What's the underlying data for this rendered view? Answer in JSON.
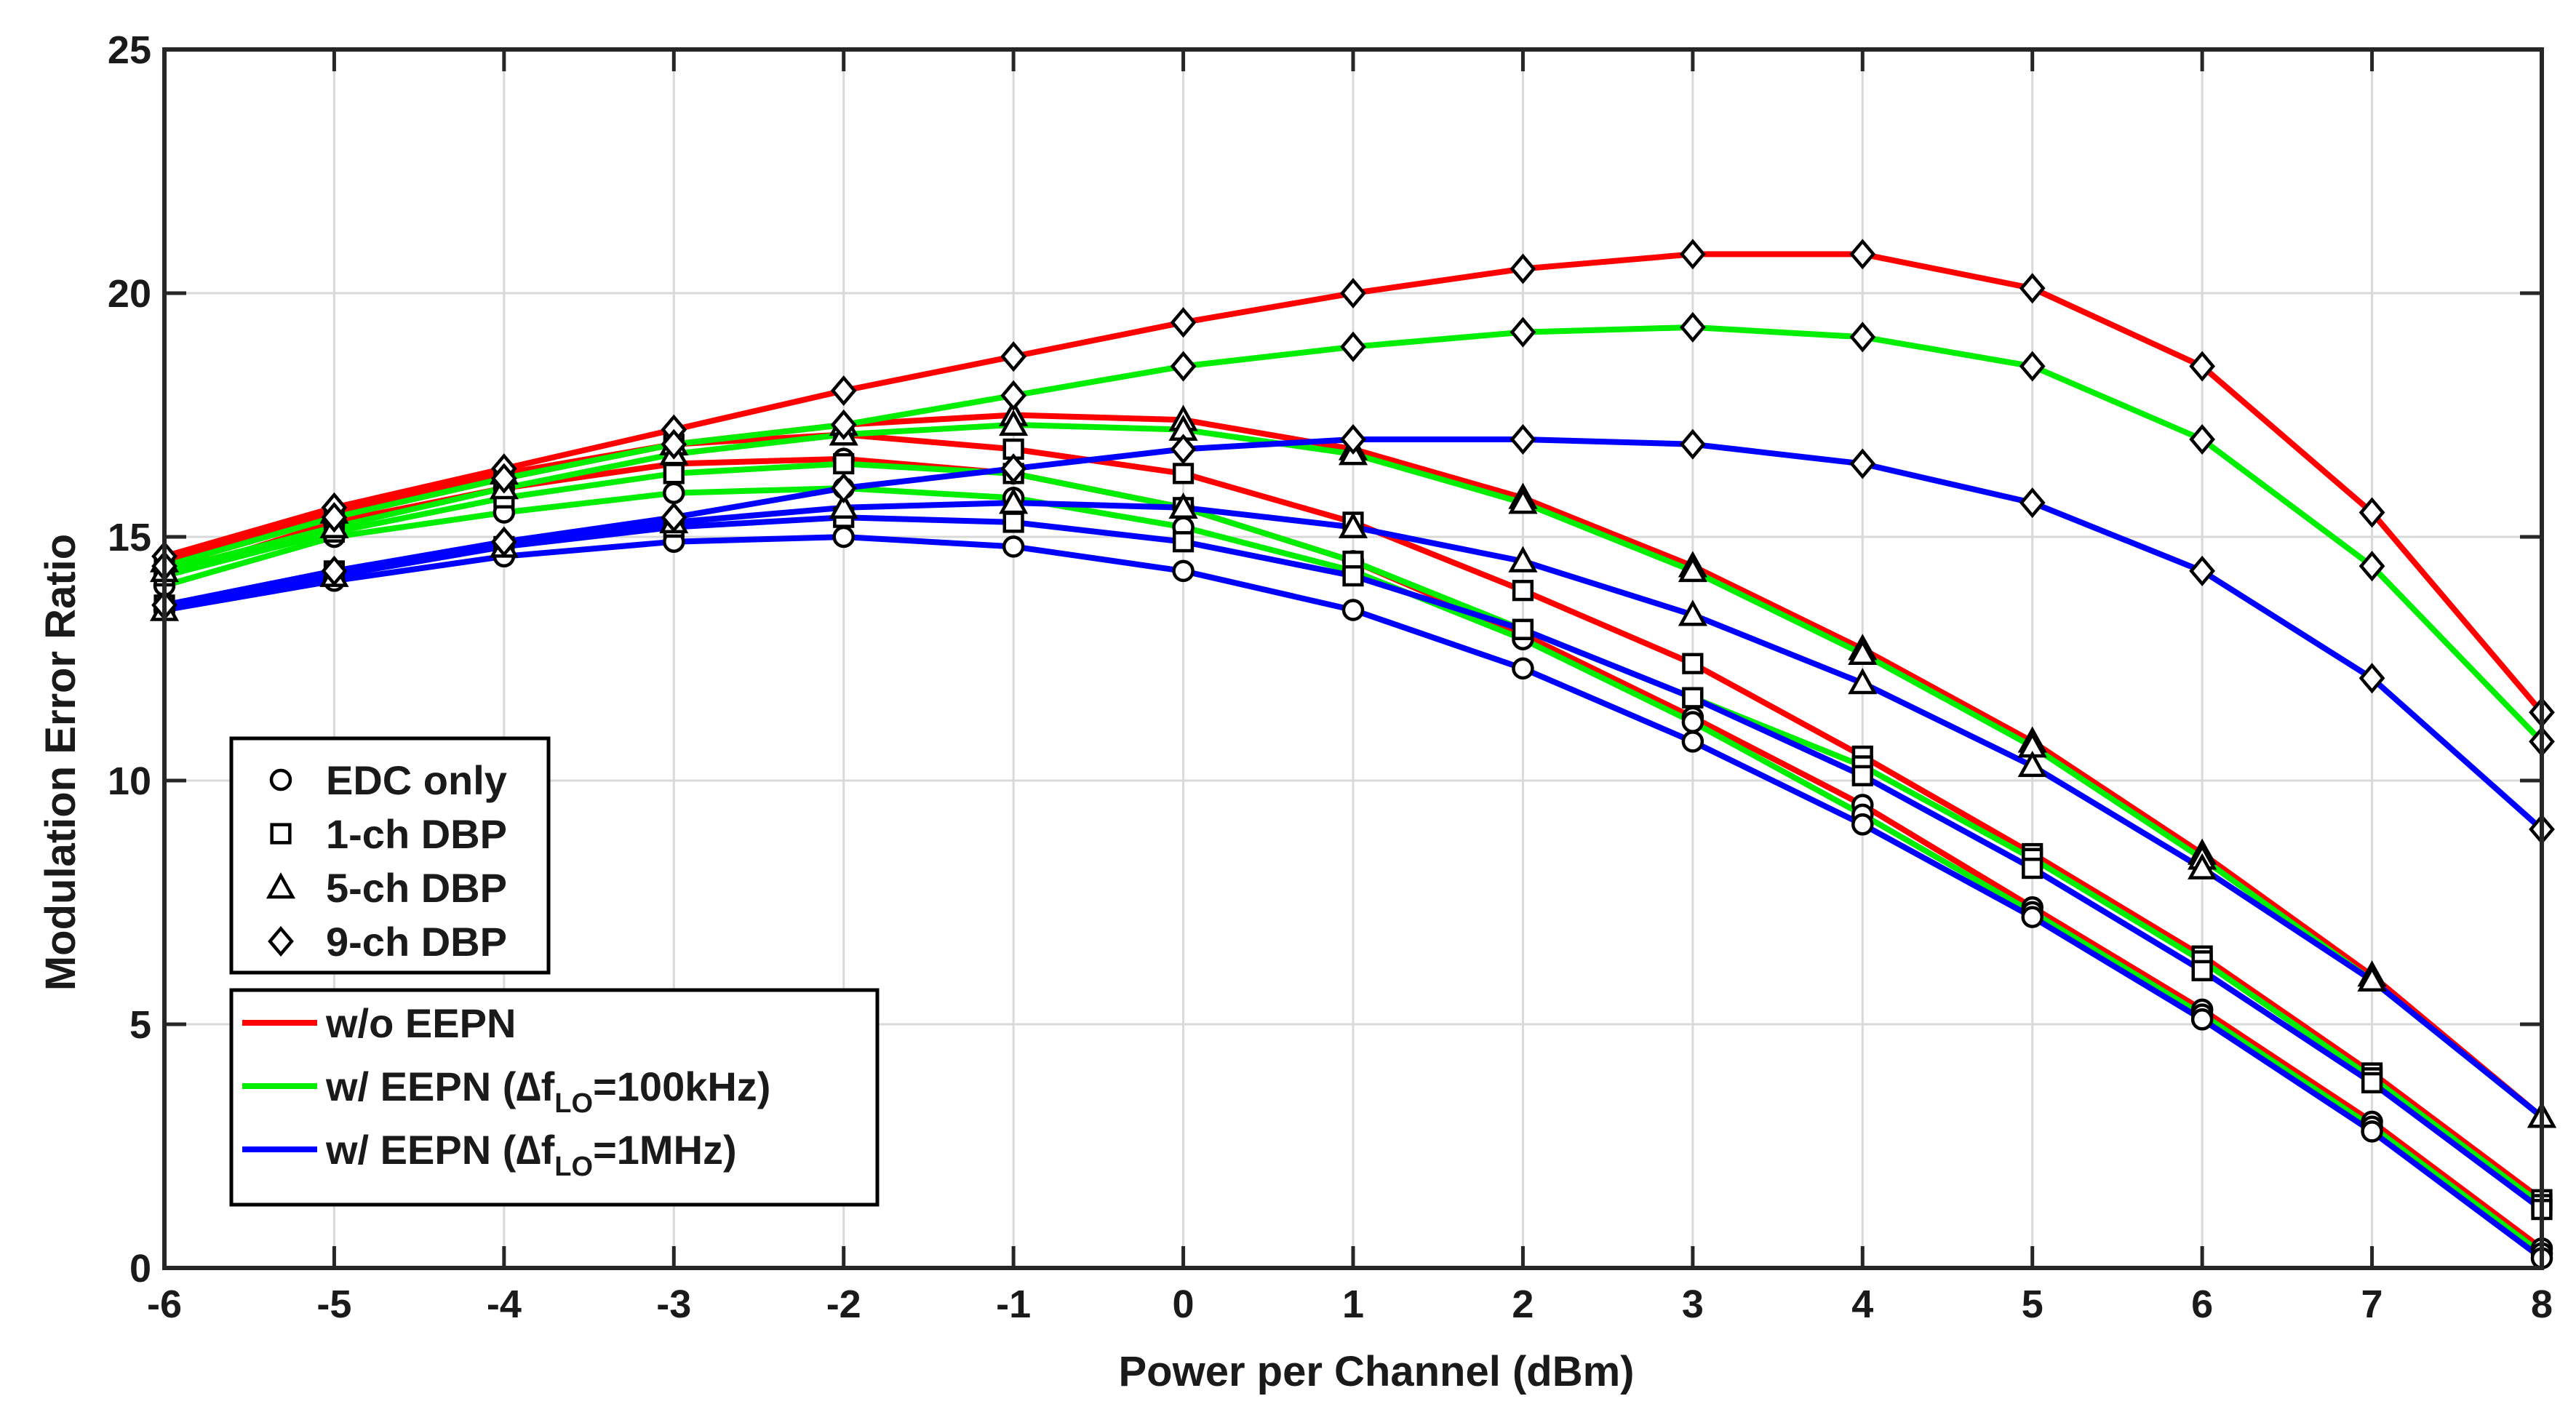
{
  "chart_data": {
    "type": "line",
    "title": "",
    "xlabel": "Power per Channel (dBm)",
    "ylabel": "Modulation Error Ratio",
    "x": [
      -6,
      -5,
      -4,
      -3,
      -2,
      -1,
      0,
      1,
      2,
      3,
      4,
      5,
      6,
      7,
      8
    ],
    "xlim": [
      -6,
      8
    ],
    "ylim": [
      0,
      25
    ],
    "xticks": [
      "-6",
      "-5",
      "-4",
      "-3",
      "-2",
      "-1",
      "0",
      "1",
      "2",
      "3",
      "4",
      "5",
      "6",
      "7",
      "8"
    ],
    "yticks": [
      "0",
      "5",
      "10",
      "15",
      "20",
      "25"
    ],
    "grid": true,
    "colors": {
      "wo_eepn": "#ff0000",
      "w_eepn_100k": "#00ee00",
      "w_eepn_1m": "#0000ff"
    },
    "series": [
      {
        "name": "EDC only, w/o EEPN",
        "marker": "circle",
        "color_key": "wo_eepn",
        "values": [
          14.2,
          15.3,
          16.0,
          16.5,
          16.6,
          16.3,
          15.6,
          14.5,
          13.0,
          11.3,
          9.5,
          7.4,
          5.3,
          3.0,
          0.4
        ]
      },
      {
        "name": "EDC only, w/ EEPN (100kHz)",
        "marker": "circle",
        "color_key": "w_eepn_100k",
        "values": [
          14.0,
          15.0,
          15.5,
          15.9,
          16.0,
          15.8,
          15.2,
          14.3,
          12.9,
          11.2,
          9.3,
          7.3,
          5.2,
          2.9,
          0.3
        ]
      },
      {
        "name": "EDC only, w/ EEPN (1MHz)",
        "marker": "circle",
        "color_key": "w_eepn_1m",
        "values": [
          13.5,
          14.1,
          14.6,
          14.9,
          15.0,
          14.8,
          14.3,
          13.5,
          12.3,
          10.8,
          9.1,
          7.2,
          5.1,
          2.8,
          0.2
        ]
      },
      {
        "name": "1-ch DBP, w/o EEPN",
        "marker": "square",
        "color_key": "wo_eepn",
        "values": [
          14.4,
          15.4,
          16.2,
          16.9,
          17.1,
          16.8,
          16.3,
          15.3,
          13.9,
          12.4,
          10.5,
          8.5,
          6.4,
          4.0,
          1.4
        ]
      },
      {
        "name": "1-ch DBP, w/ EEPN (100kHz)",
        "marker": "square",
        "color_key": "w_eepn_100k",
        "values": [
          14.2,
          15.1,
          15.8,
          16.3,
          16.5,
          16.3,
          15.6,
          14.5,
          13.1,
          11.7,
          10.3,
          8.4,
          6.3,
          3.9,
          1.3
        ]
      },
      {
        "name": "1-ch DBP, w/ EEPN (1MHz)",
        "marker": "square",
        "color_key": "w_eepn_1m",
        "values": [
          13.6,
          14.3,
          14.8,
          15.2,
          15.4,
          15.3,
          14.9,
          14.2,
          13.1,
          11.7,
          10.1,
          8.2,
          6.1,
          3.8,
          1.2
        ]
      },
      {
        "name": "5-ch DBP, w/o EEPN",
        "marker": "triangle",
        "color_key": "wo_eepn",
        "values": [
          14.5,
          15.5,
          16.3,
          16.9,
          17.3,
          17.5,
          17.4,
          16.8,
          15.8,
          14.4,
          12.7,
          10.8,
          8.5,
          6.0,
          3.1
        ]
      },
      {
        "name": "5-ch DBP, w/ EEPN (100kHz)",
        "marker": "triangle",
        "color_key": "w_eepn_100k",
        "values": [
          14.3,
          15.2,
          16.0,
          16.7,
          17.1,
          17.3,
          17.2,
          16.7,
          15.7,
          14.3,
          12.6,
          10.7,
          8.4,
          5.9,
          3.1
        ]
      },
      {
        "name": "5-ch DBP, w/ EEPN (1MHz)",
        "marker": "triangle",
        "color_key": "w_eepn_1m",
        "values": [
          13.5,
          14.2,
          14.8,
          15.3,
          15.6,
          15.7,
          15.6,
          15.2,
          14.5,
          13.4,
          12.0,
          10.3,
          8.2,
          5.9,
          3.1
        ]
      },
      {
        "name": "9-ch DBP, w/o EEPN",
        "marker": "diamond",
        "color_key": "wo_eepn",
        "values": [
          14.6,
          15.6,
          16.4,
          17.2,
          18.0,
          18.7,
          19.4,
          20.0,
          20.5,
          20.8,
          20.8,
          20.1,
          18.5,
          15.5,
          11.4
        ]
      },
      {
        "name": "9-ch DBP, w/ EEPN (100kHz)",
        "marker": "diamond",
        "color_key": "w_eepn_100k",
        "values": [
          14.4,
          15.4,
          16.2,
          16.9,
          17.3,
          17.9,
          18.5,
          18.9,
          19.2,
          19.3,
          19.1,
          18.5,
          17.0,
          14.4,
          10.8
        ]
      },
      {
        "name": "9-ch DBP, w/ EEPN (1MHz)",
        "marker": "diamond",
        "color_key": "w_eepn_1m",
        "values": [
          13.6,
          14.3,
          14.9,
          15.4,
          16.0,
          16.4,
          16.8,
          17.0,
          17.0,
          16.9,
          16.5,
          15.7,
          14.3,
          12.1,
          9.0
        ]
      }
    ],
    "legend_markers": {
      "placement": "bottom-left",
      "items": [
        {
          "marker": "circle",
          "label": "EDC only"
        },
        {
          "marker": "square",
          "label": "1-ch DBP"
        },
        {
          "marker": "triangle",
          "label": "5-ch DBP"
        },
        {
          "marker": "diamond",
          "label": "9-ch DBP"
        }
      ]
    },
    "legend_lines": {
      "placement": "bottom-left",
      "items": [
        {
          "color_key": "wo_eepn",
          "label": "w/o EEPN"
        },
        {
          "color_key": "w_eepn_100k",
          "label_pre": "w/ EEPN (∆f",
          "label_sub": "LO",
          "label_post": "=100kHz)"
        },
        {
          "color_key": "w_eepn_1m",
          "label_pre": "w/ EEPN (∆f",
          "label_sub": "LO",
          "label_post": "=1MHz)"
        }
      ]
    }
  }
}
